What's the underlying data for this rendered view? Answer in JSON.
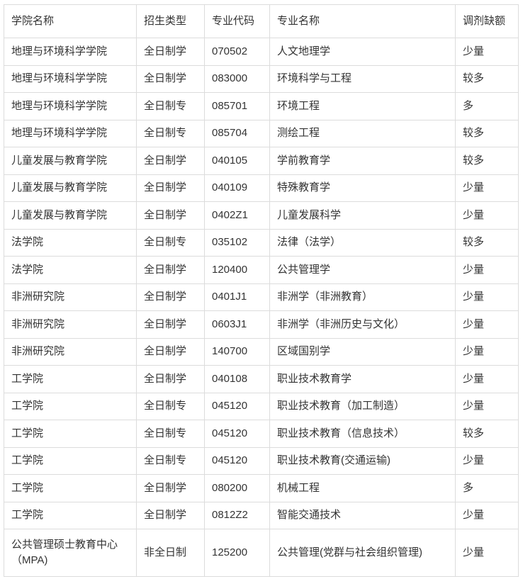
{
  "headers": [
    "学院名称",
    "招生类型",
    "专业代码",
    "专业名称",
    "调剂缺额"
  ],
  "rows": [
    [
      "地理与环境科学学院",
      "全日制学",
      "070502",
      "人文地理学",
      "少量"
    ],
    [
      "地理与环境科学学院",
      "全日制学",
      "083000",
      "环境科学与工程",
      "较多"
    ],
    [
      "地理与环境科学学院",
      "全日制专",
      "085701",
      "环境工程",
      "多"
    ],
    [
      "地理与环境科学学院",
      "全日制专",
      "085704",
      "测绘工程",
      "较多"
    ],
    [
      "儿童发展与教育学院",
      "全日制学",
      "040105",
      "学前教育学",
      "较多"
    ],
    [
      "儿童发展与教育学院",
      "全日制学",
      "040109",
      "特殊教育学",
      "少量"
    ],
    [
      "儿童发展与教育学院",
      "全日制学",
      "0402Z1",
      "儿童发展科学",
      "少量"
    ],
    [
      "法学院",
      "全日制专",
      "035102",
      "法律（法学）",
      "较多"
    ],
    [
      "法学院",
      "全日制学",
      "120400",
      "公共管理学",
      "少量"
    ],
    [
      "非洲研究院",
      "全日制学",
      "0401J1",
      "非洲学（非洲教育）",
      "少量"
    ],
    [
      "非洲研究院",
      "全日制学",
      "0603J1",
      "非洲学（非洲历史与文化）",
      "少量"
    ],
    [
      "非洲研究院",
      "全日制学",
      "140700",
      "区域国别学",
      "少量"
    ],
    [
      "工学院",
      "全日制学",
      "040108",
      "职业技术教育学",
      "少量"
    ],
    [
      "工学院",
      "全日制专",
      "045120",
      "职业技术教育（加工制造）",
      "少量"
    ],
    [
      "工学院",
      "全日制专",
      "045120",
      "职业技术教育（信息技术）",
      "较多"
    ],
    [
      "工学院",
      "全日制专",
      "045120",
      "职业技术教育(交通运输)",
      "少量"
    ],
    [
      "工学院",
      "全日制学",
      "080200",
      "机械工程",
      "多"
    ],
    [
      "工学院",
      "全日制学",
      "0812Z2",
      "智能交通技术",
      "少量"
    ],
    [
      "公共管理硕士教育中心（MPA)",
      "非全日制",
      "125200",
      "公共管理(党群与社会组织管理)",
      "少量"
    ]
  ]
}
